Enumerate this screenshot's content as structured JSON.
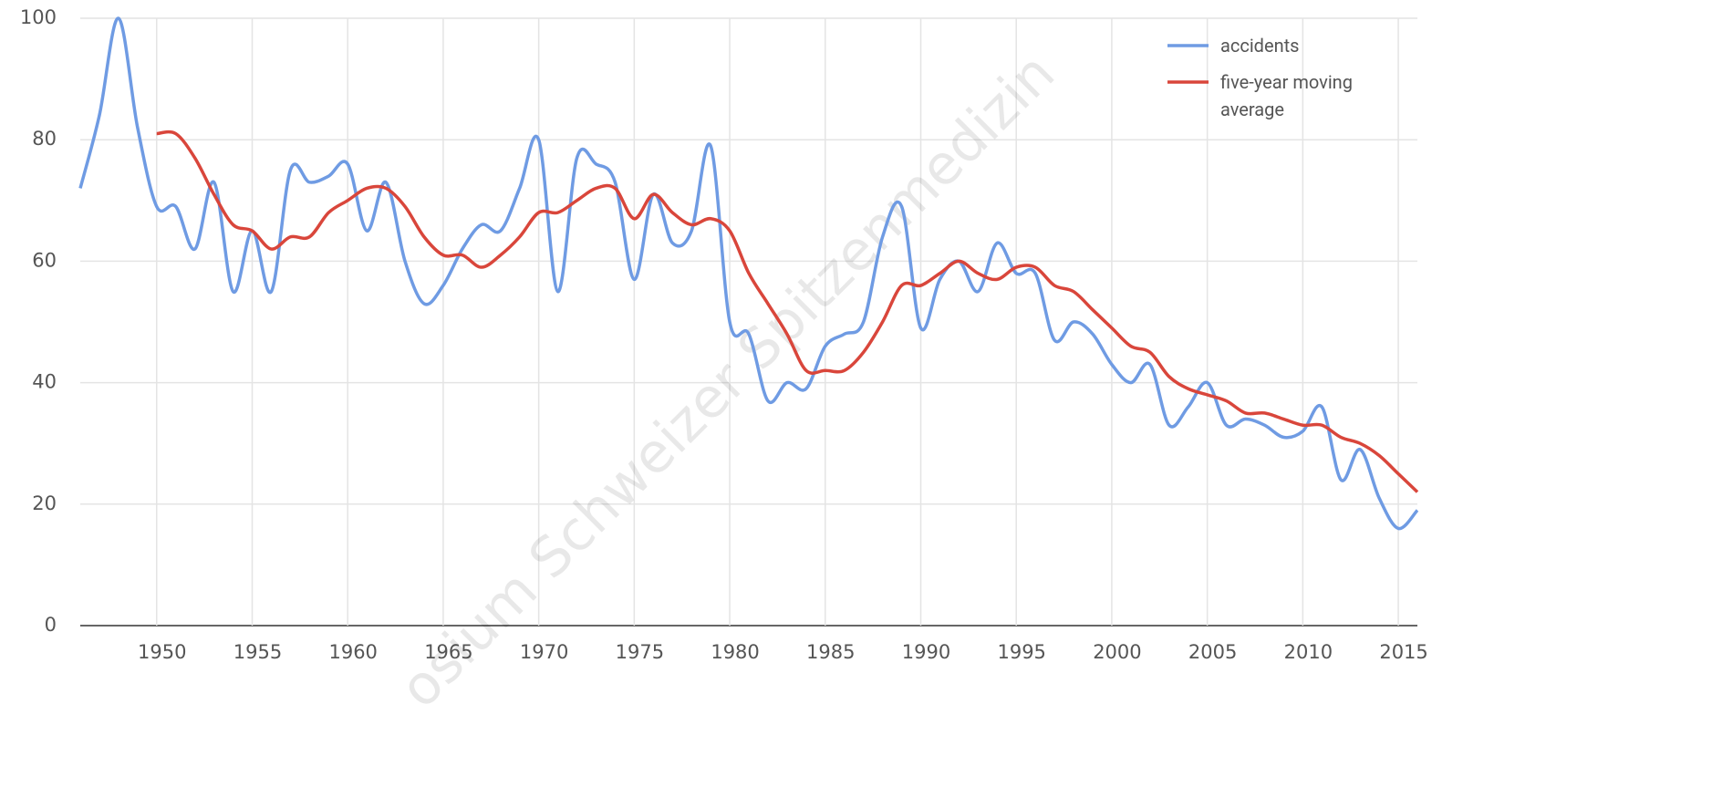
{
  "chart_data": {
    "type": "line",
    "x": [
      1946,
      1947,
      1948,
      1949,
      1950,
      1951,
      1952,
      1953,
      1954,
      1955,
      1956,
      1957,
      1958,
      1959,
      1960,
      1961,
      1962,
      1963,
      1964,
      1965,
      1966,
      1967,
      1968,
      1969,
      1970,
      1971,
      1972,
      1973,
      1974,
      1975,
      1976,
      1977,
      1978,
      1979,
      1980,
      1981,
      1982,
      1983,
      1984,
      1985,
      1986,
      1987,
      1988,
      1989,
      1990,
      1991,
      1992,
      1993,
      1994,
      1995,
      1996,
      1997,
      1998,
      1999,
      2000,
      2001,
      2002,
      2003,
      2004,
      2005,
      2006,
      2007,
      2008,
      2009,
      2010,
      2011,
      2012,
      2013,
      2014,
      2015,
      2016
    ],
    "series": [
      {
        "name": "accidents",
        "color": "#6f9be3",
        "values": [
          72,
          84,
          100,
          82,
          69,
          69,
          62,
          73,
          55,
          65,
          55,
          75,
          73,
          74,
          76,
          65,
          73,
          60,
          53,
          56,
          62,
          66,
          65,
          72,
          80,
          55,
          77,
          76,
          73,
          57,
          71,
          63,
          65,
          79,
          50,
          48,
          37,
          40,
          39,
          46,
          48,
          50,
          64,
          69,
          49,
          57,
          60,
          55,
          63,
          58,
          58,
          47,
          50,
          48,
          43,
          40,
          43,
          33,
          36,
          40,
          33,
          34,
          33,
          31,
          32,
          36,
          24,
          29,
          21,
          16,
          19
        ]
      },
      {
        "name": "five-year moving average",
        "color": "#d9463b",
        "values": [
          null,
          null,
          null,
          null,
          81,
          81,
          77,
          71,
          66,
          65,
          62,
          64,
          64,
          68,
          70,
          72,
          72,
          69,
          64,
          61,
          61,
          59,
          61,
          64,
          68,
          68,
          70,
          72,
          72,
          67,
          71,
          68,
          66,
          67,
          65,
          58,
          53,
          48,
          42,
          42,
          42,
          45,
          50,
          56,
          56,
          58,
          60,
          58,
          57,
          59,
          59,
          56,
          55,
          52,
          49,
          46,
          45,
          41,
          39,
          38,
          37,
          35,
          35,
          34,
          33,
          33,
          31,
          30,
          28,
          25,
          22
        ]
      }
    ],
    "xlim": [
      1946,
      2016
    ],
    "xticks": [
      1950,
      1955,
      1960,
      1965,
      1970,
      1975,
      1980,
      1985,
      1990,
      1995,
      2000,
      2005,
      2010,
      2015
    ],
    "ylim": [
      0,
      100
    ],
    "yticks": [
      0,
      20,
      40,
      60,
      80,
      100
    ],
    "grid": true,
    "legend": "top-right",
    "watermark": "osium Schweizer Spitzenmedizin"
  }
}
